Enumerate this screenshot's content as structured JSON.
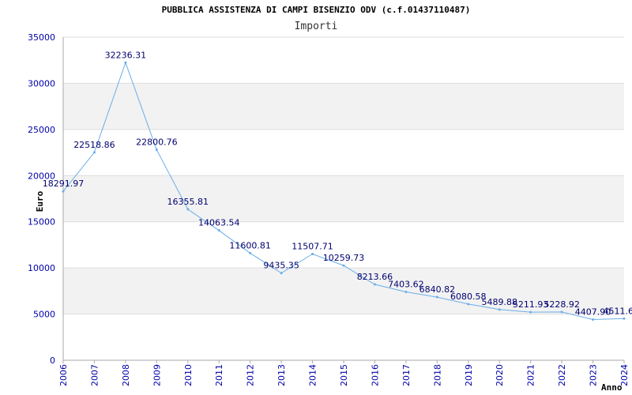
{
  "colors": {
    "band": "#f2f2f2",
    "grid": "#dddddd",
    "axis": "#aaaaaa",
    "line": "#6aaee8",
    "tick_text": "#0000aa",
    "label_text": "#00006e"
  },
  "chart_data": {
    "type": "line",
    "title": "PUBBLICA ASSISTENZA DI CAMPI BISENZIO ODV (c.f.01437110487)",
    "subtitle": "Importi",
    "xlabel": "Anno",
    "ylabel": "Euro",
    "ylim": [
      0,
      35000
    ],
    "xlim": [
      2006,
      2024
    ],
    "yticks": [
      "0",
      "5000",
      "10000",
      "15000",
      "20000",
      "25000",
      "30000",
      "35000"
    ],
    "xticks": [
      "2006",
      "2007",
      "2008",
      "2009",
      "2010",
      "2011",
      "2012",
      "2013",
      "2014",
      "2015",
      "2016",
      "2017",
      "2018",
      "2019",
      "2020",
      "2021",
      "2022",
      "2023",
      "2024"
    ],
    "grid": true,
    "series": [
      {
        "name": "Importi",
        "x": [
          2006,
          2007,
          2008,
          2009,
          2010,
          2011,
          2012,
          2013,
          2014,
          2015,
          2016,
          2017,
          2018,
          2019,
          2020,
          2021,
          2022,
          2023,
          2024
        ],
        "values": [
          18291.97,
          22518.86,
          32236.31,
          22800.76,
          16355.81,
          14063.54,
          11600.81,
          9435.35,
          11507.71,
          10259.73,
          8213.66,
          7403.62,
          6840.82,
          6080.58,
          5489.88,
          5211.93,
          5228.92,
          4407.9,
          4511.6
        ],
        "labels": [
          "18291.97",
          "22518.86",
          "32236.31",
          "22800.76",
          "16355.81",
          "14063.54",
          "11600.81",
          "9435.35",
          "11507.71",
          "10259.73",
          "8213.66",
          "7403.62",
          "6840.82",
          "6080.58",
          "5489.88",
          "5211.93",
          "5228.92",
          "4407.90",
          "4511.6"
        ]
      }
    ]
  }
}
